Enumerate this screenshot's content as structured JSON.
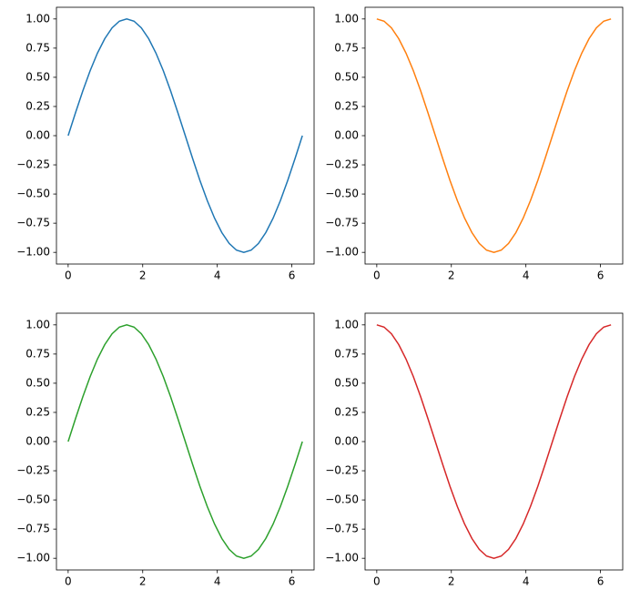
{
  "chart_data": [
    {
      "type": "line",
      "x": [
        0,
        0.196,
        0.393,
        0.589,
        0.785,
        0.982,
        1.178,
        1.374,
        1.571,
        1.767,
        1.963,
        2.16,
        2.356,
        2.553,
        2.749,
        2.945,
        3.142,
        3.338,
        3.534,
        3.731,
        3.927,
        4.123,
        4.32,
        4.516,
        4.712,
        4.909,
        5.105,
        5.301,
        5.498,
        5.694,
        5.89,
        6.087,
        6.283
      ],
      "series": [
        {
          "color": "#1f77b4",
          "values": [
            0,
            0.195,
            0.383,
            0.556,
            0.707,
            0.831,
            0.924,
            0.981,
            1,
            0.981,
            0.924,
            0.831,
            0.707,
            0.556,
            0.383,
            0.195,
            0,
            -0.195,
            -0.383,
            -0.556,
            -0.707,
            -0.831,
            -0.924,
            -0.981,
            -1,
            -0.981,
            -0.924,
            -0.831,
            -0.707,
            -0.556,
            -0.383,
            -0.195,
            0
          ]
        }
      ],
      "xlim": [
        -0.314,
        6.597
      ],
      "ylim": [
        -1.1,
        1.1
      ],
      "xticks": [
        0,
        2,
        4,
        6
      ],
      "yticks": [
        {
          "value": -1,
          "label": "−1.00"
        },
        {
          "value": -0.75,
          "label": "−0.75"
        },
        {
          "value": -0.5,
          "label": "−0.50"
        },
        {
          "value": -0.25,
          "label": "−0.25"
        },
        {
          "value": 0,
          "label": "0.00"
        },
        {
          "value": 0.25,
          "label": "0.25"
        },
        {
          "value": 0.5,
          "label": "0.50"
        },
        {
          "value": 0.75,
          "label": "0.75"
        },
        {
          "value": 1,
          "label": "1.00"
        }
      ]
    },
    {
      "type": "line",
      "x": [
        0,
        0.196,
        0.393,
        0.589,
        0.785,
        0.982,
        1.178,
        1.374,
        1.571,
        1.767,
        1.963,
        2.16,
        2.356,
        2.553,
        2.749,
        2.945,
        3.142,
        3.338,
        3.534,
        3.731,
        3.927,
        4.123,
        4.32,
        4.516,
        4.712,
        4.909,
        5.105,
        5.301,
        5.498,
        5.694,
        5.89,
        6.087,
        6.283
      ],
      "series": [
        {
          "color": "#ff7f0e",
          "values": [
            1,
            0.981,
            0.924,
            0.831,
            0.707,
            0.556,
            0.383,
            0.195,
            0,
            -0.195,
            -0.383,
            -0.556,
            -0.707,
            -0.831,
            -0.924,
            -0.981,
            -1,
            -0.981,
            -0.924,
            -0.831,
            -0.707,
            -0.556,
            -0.383,
            -0.195,
            0,
            0.195,
            0.383,
            0.556,
            0.707,
            0.831,
            0.924,
            0.981,
            1
          ]
        }
      ],
      "xlim": [
        -0.314,
        6.597
      ],
      "ylim": [
        -1.1,
        1.1
      ],
      "xticks": [
        0,
        2,
        4,
        6
      ],
      "yticks": [
        {
          "value": -1,
          "label": "−1.00"
        },
        {
          "value": -0.75,
          "label": "−0.75"
        },
        {
          "value": -0.5,
          "label": "−0.50"
        },
        {
          "value": -0.25,
          "label": "−0.25"
        },
        {
          "value": 0,
          "label": "0.00"
        },
        {
          "value": 0.25,
          "label": "0.25"
        },
        {
          "value": 0.5,
          "label": "0.50"
        },
        {
          "value": 0.75,
          "label": "0.75"
        },
        {
          "value": 1,
          "label": "1.00"
        }
      ]
    },
    {
      "type": "line",
      "x": [
        0,
        0.196,
        0.393,
        0.589,
        0.785,
        0.982,
        1.178,
        1.374,
        1.571,
        1.767,
        1.963,
        2.16,
        2.356,
        2.553,
        2.749,
        2.945,
        3.142,
        3.338,
        3.534,
        3.731,
        3.927,
        4.123,
        4.32,
        4.516,
        4.712,
        4.909,
        5.105,
        5.301,
        5.498,
        5.694,
        5.89,
        6.087,
        6.283
      ],
      "series": [
        {
          "color": "#2ca02c",
          "values": [
            0,
            0.195,
            0.383,
            0.556,
            0.707,
            0.831,
            0.924,
            0.981,
            1,
            0.981,
            0.924,
            0.831,
            0.707,
            0.556,
            0.383,
            0.195,
            0,
            -0.195,
            -0.383,
            -0.556,
            -0.707,
            -0.831,
            -0.924,
            -0.981,
            -1,
            -0.981,
            -0.924,
            -0.831,
            -0.707,
            -0.556,
            -0.383,
            -0.195,
            0
          ]
        }
      ],
      "xlim": [
        -0.314,
        6.597
      ],
      "ylim": [
        -1.1,
        1.1
      ],
      "xticks": [
        0,
        2,
        4,
        6
      ],
      "yticks": [
        {
          "value": -1,
          "label": "−1.00"
        },
        {
          "value": -0.75,
          "label": "−0.75"
        },
        {
          "value": -0.5,
          "label": "−0.50"
        },
        {
          "value": -0.25,
          "label": "−0.25"
        },
        {
          "value": 0,
          "label": "0.00"
        },
        {
          "value": 0.25,
          "label": "0.25"
        },
        {
          "value": 0.5,
          "label": "0.50"
        },
        {
          "value": 0.75,
          "label": "0.75"
        },
        {
          "value": 1,
          "label": "1.00"
        }
      ]
    },
    {
      "type": "line",
      "x": [
        0,
        0.196,
        0.393,
        0.589,
        0.785,
        0.982,
        1.178,
        1.374,
        1.571,
        1.767,
        1.963,
        2.16,
        2.356,
        2.553,
        2.749,
        2.945,
        3.142,
        3.338,
        3.534,
        3.731,
        3.927,
        4.123,
        4.32,
        4.516,
        4.712,
        4.909,
        5.105,
        5.301,
        5.498,
        5.694,
        5.89,
        6.087,
        6.283
      ],
      "series": [
        {
          "color": "#d62728",
          "values": [
            1,
            0.981,
            0.924,
            0.831,
            0.707,
            0.556,
            0.383,
            0.195,
            0,
            -0.195,
            -0.383,
            -0.556,
            -0.707,
            -0.831,
            -0.924,
            -0.981,
            -1,
            -0.981,
            -0.924,
            -0.831,
            -0.707,
            -0.556,
            -0.383,
            -0.195,
            0,
            0.195,
            0.383,
            0.556,
            0.707,
            0.831,
            0.924,
            0.981,
            1
          ]
        }
      ],
      "xlim": [
        -0.314,
        6.597
      ],
      "ylim": [
        -1.1,
        1.1
      ],
      "xticks": [
        0,
        2,
        4,
        6
      ],
      "yticks": [
        {
          "value": -1,
          "label": "−1.00"
        },
        {
          "value": -0.75,
          "label": "−0.75"
        },
        {
          "value": -0.5,
          "label": "−0.50"
        },
        {
          "value": -0.25,
          "label": "−0.25"
        },
        {
          "value": 0,
          "label": "0.00"
        },
        {
          "value": 0.25,
          "label": "0.25"
        },
        {
          "value": 0.5,
          "label": "0.50"
        },
        {
          "value": 0.75,
          "label": "0.75"
        },
        {
          "value": 1,
          "label": "1.00"
        }
      ]
    }
  ]
}
